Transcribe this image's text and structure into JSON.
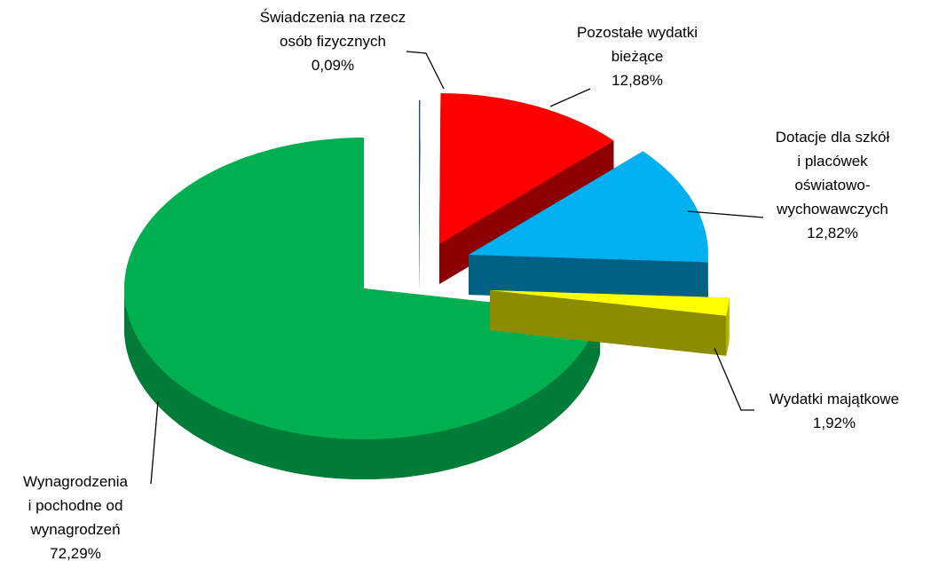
{
  "chart_data": {
    "type": "pie",
    "categories": [
      "Świadczenia na rzecz\nosób fizycznych",
      "Pozostałe wydatki\nbieżące",
      "Dotacje dla szkół\ni placówek\noświatowo-\nwychowawczych",
      "Wydatki majątkowe",
      "Wynagrodzenia\ni pochodne od\nwynagrodzeń"
    ],
    "values": [
      0.09,
      12.88,
      12.82,
      1.92,
      72.29
    ],
    "value_labels": [
      "0,09%",
      "12,88%",
      "12,82%",
      "1,92%",
      "72,29%"
    ],
    "colors": [
      "#1f4e9a",
      "#ff0000",
      "#00b0f0",
      "#ffff00",
      "#00b050"
    ]
  }
}
